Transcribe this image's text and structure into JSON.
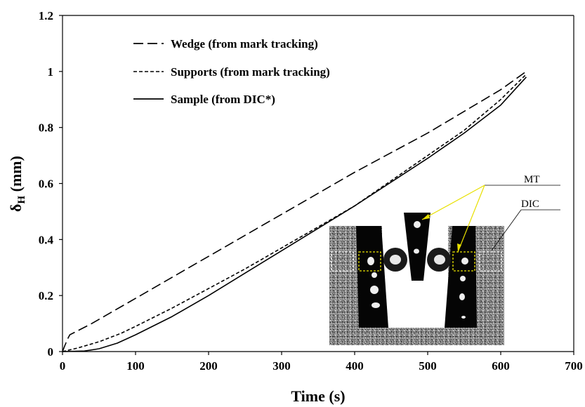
{
  "chart_data": {
    "type": "line",
    "xlabel": "Time (s)",
    "ylabel_main": "δ",
    "ylabel_sub": "H",
    "ylabel_unit": " (mm)",
    "xlim": [
      0,
      700
    ],
    "ylim": [
      0,
      1.2
    ],
    "x_ticks": [
      "0",
      "100",
      "200",
      "300",
      "400",
      "500",
      "600",
      "700"
    ],
    "y_ticks": [
      "0",
      "0.2",
      "0.4",
      "0.6",
      "0.8",
      "1",
      "1.2"
    ],
    "grid": false,
    "legend_position": "top-left",
    "series": [
      {
        "name": "Wedge (from mark tracking)",
        "style": "long-dash",
        "color": "#000000",
        "x": [
          0,
          3,
          7,
          10,
          40,
          100,
          200,
          300,
          400,
          500,
          600,
          635
        ],
        "y": [
          0,
          0.02,
          0.045,
          0.06,
          0.1,
          0.19,
          0.34,
          0.49,
          0.64,
          0.78,
          0.935,
          1.0
        ]
      },
      {
        "name": "Supports (from mark tracking)",
        "style": "short-dash",
        "color": "#000000",
        "x": [
          0,
          20,
          50,
          80,
          100,
          150,
          200,
          250,
          300,
          350,
          400,
          450,
          500,
          550,
          600,
          635
        ],
        "y": [
          0,
          0.012,
          0.035,
          0.065,
          0.09,
          0.155,
          0.225,
          0.295,
          0.37,
          0.445,
          0.52,
          0.61,
          0.7,
          0.79,
          0.9,
          0.99
        ]
      },
      {
        "name": "Sample (from DIC*)",
        "style": "solid",
        "color": "#000000",
        "x": [
          0,
          30,
          50,
          75,
          100,
          150,
          200,
          250,
          300,
          350,
          400,
          450,
          500,
          550,
          600,
          635
        ],
        "y": [
          0,
          0.002,
          0.01,
          0.03,
          0.06,
          0.125,
          0.2,
          0.28,
          0.36,
          0.44,
          0.52,
          0.605,
          0.69,
          0.78,
          0.88,
          0.98
        ]
      }
    ]
  },
  "inset": {
    "labels": [
      "MT",
      "DIC"
    ],
    "box_color": "#e8e000"
  }
}
